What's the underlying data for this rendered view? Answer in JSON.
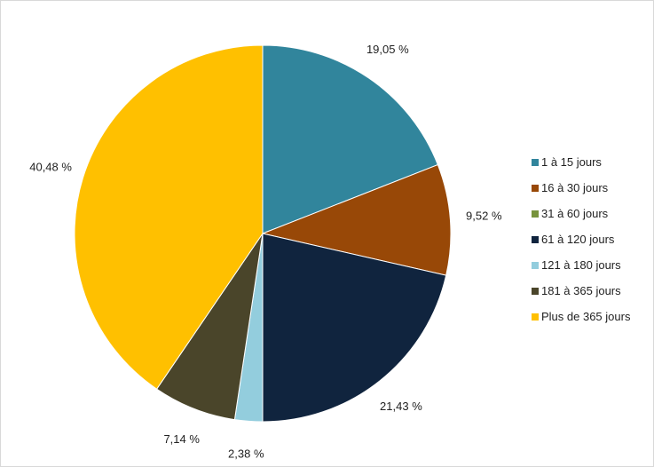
{
  "chart_data": {
    "type": "pie",
    "categories": [
      "1 à 15 jours",
      "16 à 30 jours",
      "31 à 60 jours",
      "61 à 120 jours",
      "121 à 180 jours",
      "181 à 365 jours",
      "Plus de 365 jours"
    ],
    "values": [
      19.05,
      9.52,
      0,
      21.43,
      2.38,
      7.14,
      40.48
    ],
    "value_labels": [
      "19,05 %",
      "9,52 %",
      "",
      "21,43 %",
      "2,38 %",
      "7,14 %",
      "40,48 %"
    ],
    "colors": [
      "#31859C",
      "#984807",
      "#77933C",
      "#10243E",
      "#93CDDD",
      "#4A452A",
      "#FFC000"
    ],
    "start_angle": "12 o'clock",
    "direction": "clockwise",
    "legend_position": "right"
  }
}
